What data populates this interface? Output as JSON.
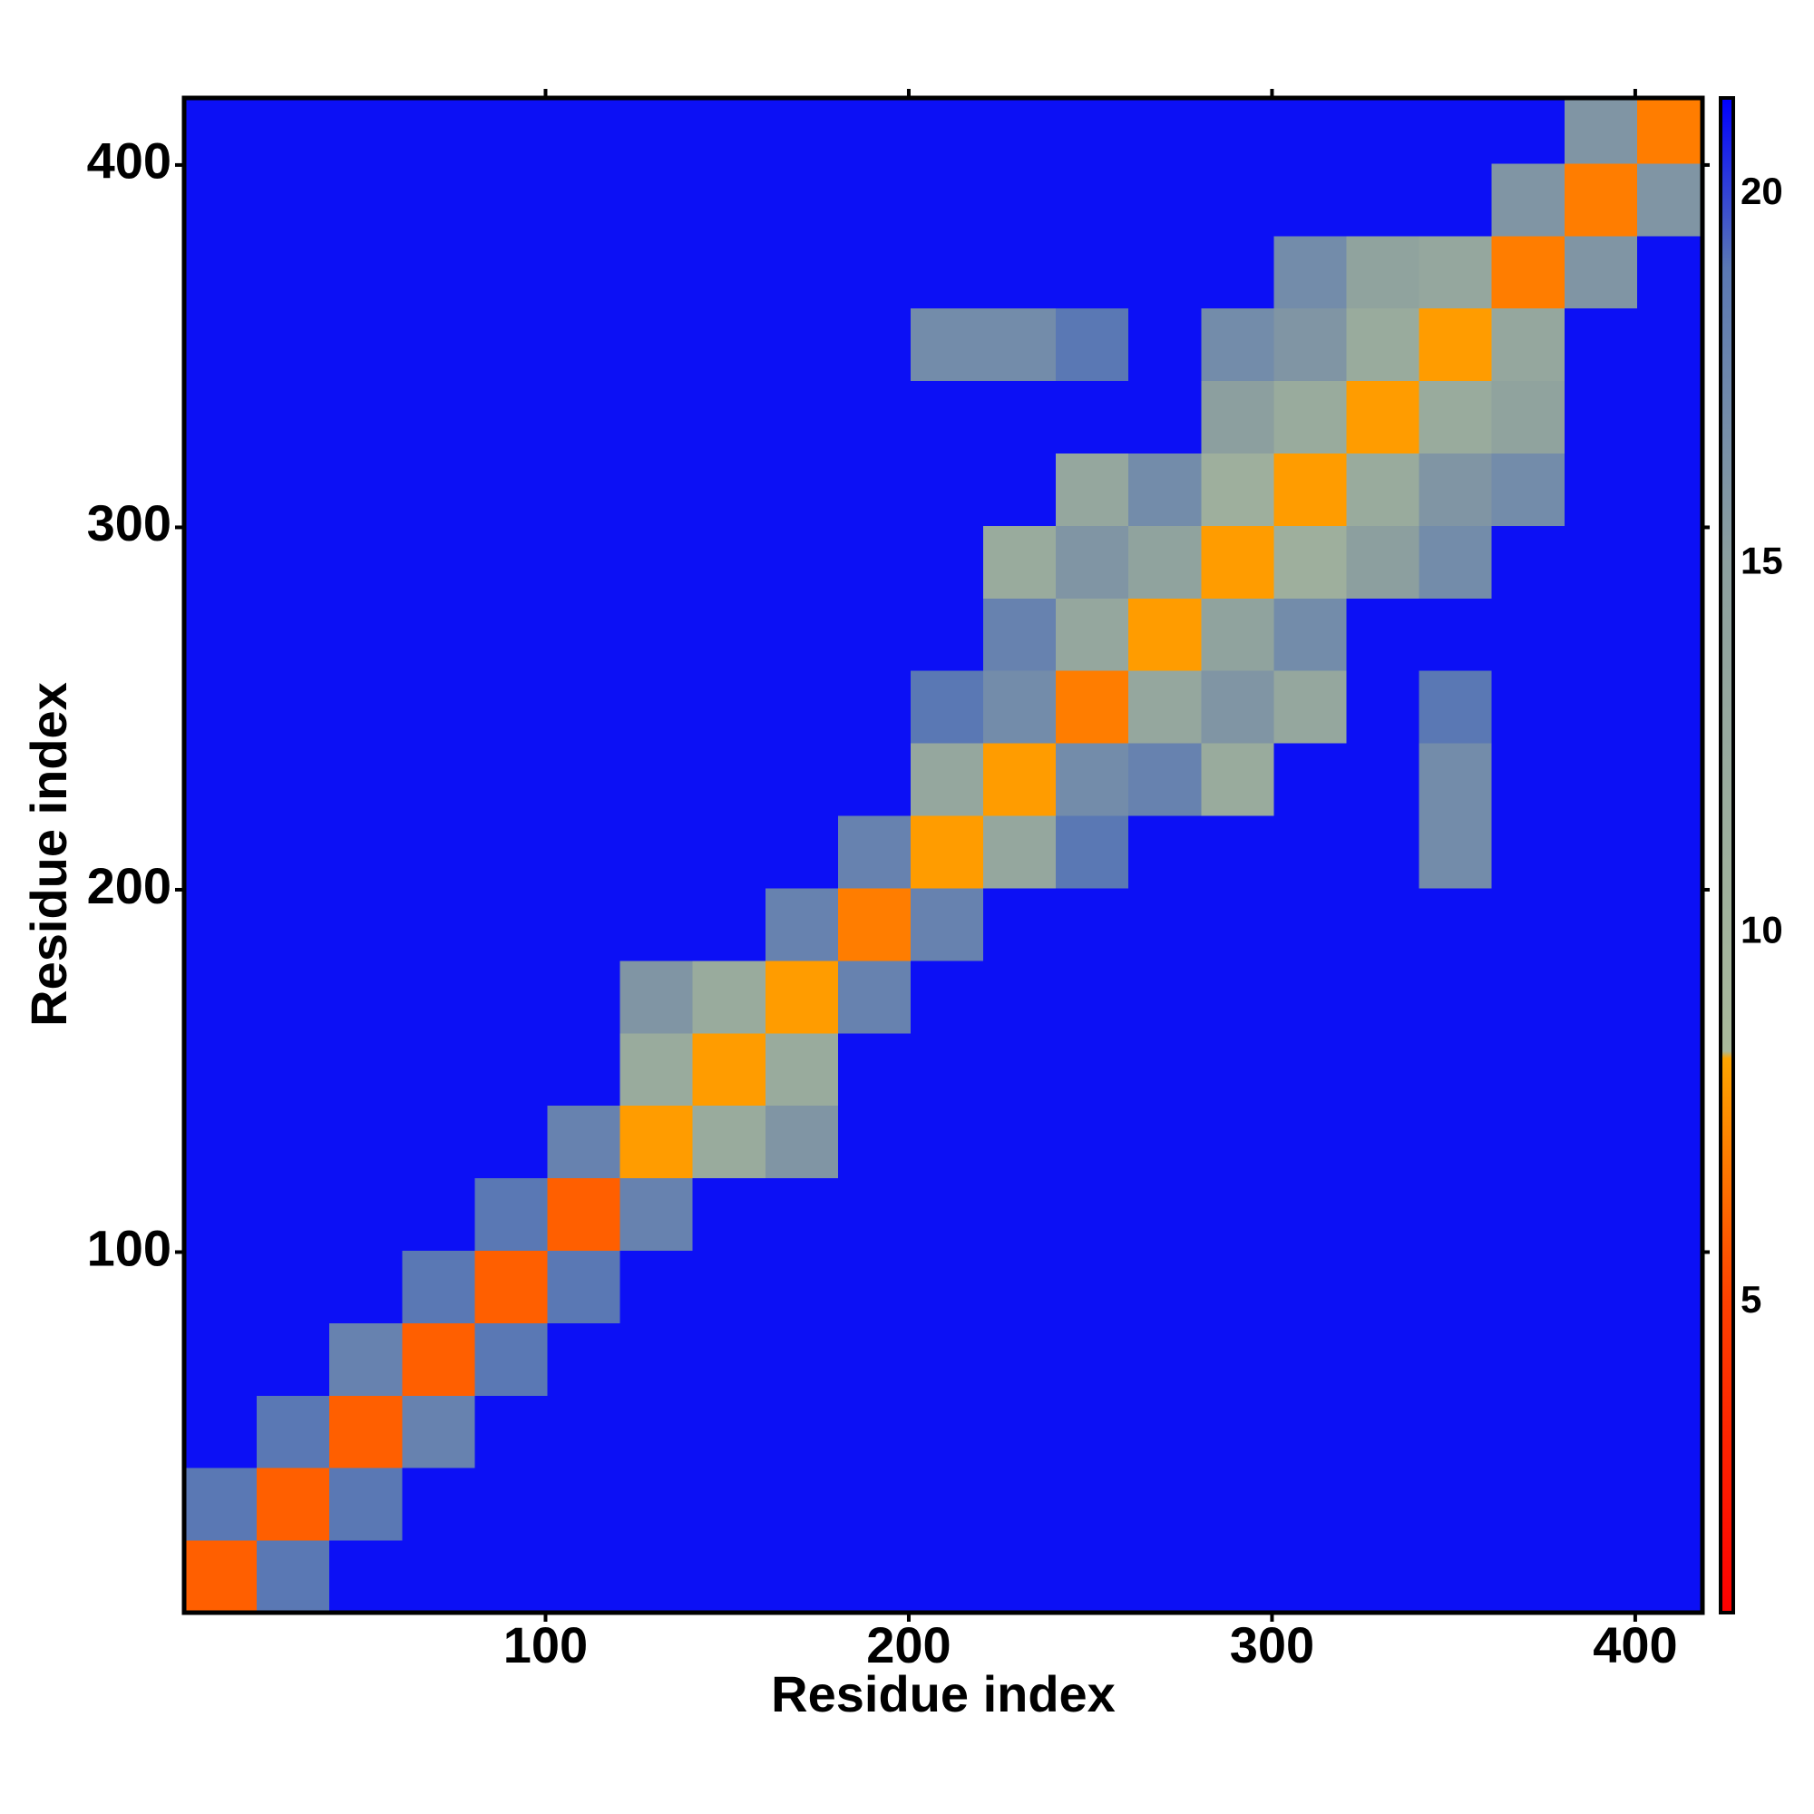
{
  "chart_data": {
    "type": "heatmap",
    "x_label": "Residue index",
    "y_label": "Residue index",
    "xlim": [
      0.5,
      418.5
    ],
    "ylim": [
      0.5,
      418.5
    ],
    "xticks": [
      100,
      200,
      300,
      400
    ],
    "yticks": [
      100,
      200,
      300,
      400
    ],
    "xbins": [
      0.5,
      20.5,
      40.5,
      60.5,
      80.5,
      100.5,
      120.5,
      140.5,
      160.5,
      180.5,
      200.5,
      220.5,
      240.5,
      260.5,
      280.5,
      300.5,
      320.5,
      340.5,
      360.5,
      380.5,
      400.5,
      418.5
    ],
    "ybins": [
      0.5,
      20.5,
      40.5,
      60.5,
      80.5,
      100.5,
      120.5,
      140.5,
      160.5,
      180.5,
      200.5,
      220.5,
      240.5,
      260.5,
      280.5,
      300.5,
      320.5,
      340.5,
      360.5,
      380.5,
      400.5,
      418.5
    ],
    "z": [
      [
        6,
        19,
        21,
        21,
        21,
        21,
        21,
        21,
        21,
        21,
        21,
        21,
        21,
        21,
        21,
        21,
        21,
        21,
        21,
        21,
        21
      ],
      [
        19,
        6,
        19,
        21,
        21,
        21,
        21,
        21,
        21,
        21,
        21,
        21,
        21,
        21,
        21,
        21,
        21,
        21,
        21,
        21,
        21
      ],
      [
        21,
        19,
        6,
        18,
        21,
        21,
        21,
        21,
        21,
        21,
        21,
        21,
        21,
        21,
        21,
        21,
        21,
        21,
        21,
        21,
        21
      ],
      [
        21,
        21,
        18,
        6,
        19,
        21,
        21,
        21,
        21,
        21,
        21,
        21,
        21,
        21,
        21,
        21,
        21,
        21,
        21,
        21,
        21
      ],
      [
        21,
        21,
        21,
        19,
        6,
        19,
        21,
        21,
        21,
        21,
        21,
        21,
        21,
        21,
        21,
        21,
        21,
        21,
        21,
        21,
        21
      ],
      [
        21,
        21,
        21,
        21,
        19,
        6,
        18,
        21,
        21,
        21,
        21,
        21,
        21,
        21,
        21,
        21,
        21,
        21,
        21,
        21,
        21
      ],
      [
        21,
        21,
        21,
        21,
        21,
        18,
        8,
        12,
        16,
        21,
        21,
        21,
        21,
        21,
        21,
        21,
        21,
        21,
        21,
        21,
        21
      ],
      [
        21,
        21,
        21,
        21,
        21,
        21,
        12,
        8,
        12,
        21,
        21,
        21,
        21,
        21,
        21,
        21,
        21,
        21,
        21,
        21,
        21
      ],
      [
        21,
        21,
        21,
        21,
        21,
        21,
        16,
        12,
        8,
        18,
        21,
        21,
        21,
        21,
        21,
        21,
        21,
        21,
        21,
        21,
        21
      ],
      [
        21,
        21,
        21,
        21,
        21,
        21,
        21,
        21,
        18,
        7,
        18,
        21,
        21,
        21,
        21,
        21,
        21,
        21,
        21,
        21,
        21
      ],
      [
        21,
        21,
        21,
        21,
        21,
        21,
        21,
        21,
        21,
        18,
        8,
        13,
        19,
        21,
        21,
        21,
        21,
        17,
        21,
        21,
        21
      ],
      [
        21,
        21,
        21,
        21,
        21,
        21,
        21,
        21,
        21,
        21,
        13,
        8,
        17,
        18,
        12,
        21,
        21,
        17,
        21,
        21,
        21
      ],
      [
        21,
        21,
        21,
        21,
        21,
        21,
        21,
        21,
        21,
        21,
        19,
        17,
        7,
        13,
        16,
        13,
        21,
        19,
        21,
        21,
        21
      ],
      [
        21,
        21,
        21,
        21,
        21,
        21,
        21,
        21,
        21,
        21,
        21,
        18,
        13,
        8,
        14,
        17,
        21,
        21,
        21,
        21,
        21
      ],
      [
        21,
        21,
        21,
        21,
        21,
        21,
        21,
        21,
        21,
        21,
        21,
        12,
        16,
        14,
        8,
        11,
        15,
        17,
        21,
        21,
        21
      ],
      [
        21,
        21,
        21,
        21,
        21,
        21,
        21,
        21,
        21,
        21,
        21,
        21,
        13,
        17,
        11,
        8,
        12,
        16,
        17,
        21,
        21
      ],
      [
        21,
        21,
        21,
        21,
        21,
        21,
        21,
        21,
        21,
        21,
        21,
        21,
        21,
        21,
        15,
        12,
        8,
        12,
        14,
        21,
        21
      ],
      [
        21,
        21,
        21,
        21,
        21,
        21,
        21,
        21,
        21,
        21,
        17,
        17,
        19,
        21,
        17,
        16,
        12,
        8,
        13,
        21,
        21
      ],
      [
        21,
        21,
        21,
        21,
        21,
        21,
        21,
        21,
        21,
        21,
        21,
        21,
        21,
        21,
        21,
        17,
        14,
        13,
        7,
        16,
        21
      ],
      [
        21,
        21,
        21,
        21,
        21,
        21,
        21,
        21,
        21,
        21,
        21,
        21,
        21,
        21,
        21,
        21,
        21,
        21,
        16,
        7,
        16
      ],
      [
        21,
        21,
        21,
        21,
        21,
        21,
        21,
        21,
        21,
        21,
        21,
        21,
        21,
        21,
        21,
        21,
        21,
        21,
        21,
        16,
        7
      ]
    ],
    "clim": [
      0.8,
      21.3
    ],
    "cticks": [
      5,
      10,
      15,
      20
    ],
    "colormap": [
      {
        "value": 0.8,
        "color": "#ff0000"
      },
      {
        "value": 5,
        "color": "#ff4000"
      },
      {
        "value": 8.3,
        "color": "#ffa500"
      },
      {
        "value": 8.4,
        "color": "#a9b99b"
      },
      {
        "value": 15,
        "color": "#8c9f9f"
      },
      {
        "value": 19,
        "color": "#5a78b4"
      },
      {
        "value": 21.3,
        "color": "#0000ff"
      }
    ]
  }
}
